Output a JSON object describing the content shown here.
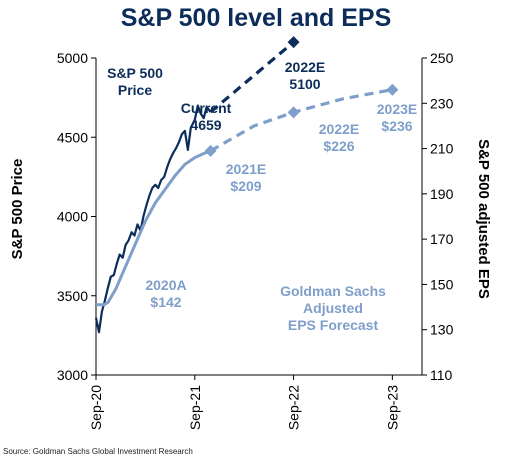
{
  "colors": {
    "title": "#0c2d5a",
    "price": "#0c2d5a",
    "eps": "#7f9fca",
    "axis": "#000000"
  },
  "chart_data": {
    "type": "line",
    "title": "S&P 500 level and EPS",
    "source": "Source: Goldman Sachs Global Investment Research",
    "ylabel_left": "S&P 500 Price",
    "ylabel_right": "S&P 500 adjusted EPS",
    "x_ticks": [
      "Sep-20",
      "Sep-21",
      "Sep-22",
      "Sep-23"
    ],
    "y_left": {
      "ticks": [
        "3000",
        "3500",
        "4000",
        "4500",
        "5000"
      ],
      "min": 3000,
      "max": 5000
    },
    "y_right": {
      "ticks": [
        "110",
        "130",
        "150",
        "170",
        "190",
        "210",
        "230",
        "250"
      ],
      "min": 110,
      "max": 250
    },
    "series": [
      {
        "name": "S&P 500 Price",
        "axis": "left",
        "points": [
          [
            0.0,
            3360
          ],
          [
            0.03,
            3270
          ],
          [
            0.06,
            3400
          ],
          [
            0.09,
            3470
          ],
          [
            0.12,
            3550
          ],
          [
            0.15,
            3620
          ],
          [
            0.18,
            3630
          ],
          [
            0.21,
            3700
          ],
          [
            0.24,
            3760
          ],
          [
            0.27,
            3740
          ],
          [
            0.3,
            3820
          ],
          [
            0.33,
            3850
          ],
          [
            0.36,
            3900
          ],
          [
            0.39,
            3880
          ],
          [
            0.42,
            3950
          ],
          [
            0.45,
            3910
          ],
          [
            0.48,
            4000
          ],
          [
            0.51,
            4070
          ],
          [
            0.54,
            4130
          ],
          [
            0.57,
            4180
          ],
          [
            0.6,
            4200
          ],
          [
            0.63,
            4180
          ],
          [
            0.66,
            4230
          ],
          [
            0.69,
            4250
          ],
          [
            0.72,
            4310
          ],
          [
            0.75,
            4360
          ],
          [
            0.78,
            4400
          ],
          [
            0.81,
            4430
          ],
          [
            0.84,
            4470
          ],
          [
            0.87,
            4520
          ],
          [
            0.9,
            4540
          ],
          [
            0.93,
            4420
          ],
          [
            0.96,
            4560
          ],
          [
            1.0,
            4610
          ],
          [
            1.03,
            4700
          ],
          [
            1.06,
            4650
          ],
          [
            1.09,
            4620
          ],
          [
            1.12,
            4690
          ],
          [
            1.16,
            4659
          ]
        ]
      },
      {
        "name": "S&P 500 adjusted EPS",
        "axis": "right",
        "points": [
          [
            0.0,
            141
          ],
          [
            0.08,
            141
          ],
          [
            0.12,
            142
          ],
          [
            0.2,
            148
          ],
          [
            0.3,
            158
          ],
          [
            0.4,
            168
          ],
          [
            0.5,
            178
          ],
          [
            0.6,
            186
          ],
          [
            0.7,
            192
          ],
          [
            0.8,
            198
          ],
          [
            0.9,
            203
          ],
          [
            1.0,
            206
          ],
          [
            1.1,
            208
          ],
          [
            1.16,
            209
          ]
        ]
      },
      {
        "name": "Goldman Sachs Adjusted EPS Forecast",
        "axis": "right",
        "points": [
          [
            1.16,
            209
          ],
          [
            1.6,
            220
          ],
          [
            2.0,
            226
          ],
          [
            2.5,
            232
          ],
          [
            3.0,
            236
          ]
        ]
      },
      {
        "name": "S&P 500 price forecast",
        "axis": "left",
        "points": [
          [
            1.16,
            4659
          ],
          [
            2.0,
            5100
          ]
        ]
      }
    ],
    "markers": [
      {
        "axis": "right",
        "x": 1.16,
        "y": 209
      },
      {
        "axis": "right",
        "x": 2.0,
        "y": 226
      },
      {
        "axis": "right",
        "x": 3.0,
        "y": 236
      },
      {
        "axis": "left",
        "x": 2.0,
        "y": 5100
      }
    ],
    "annotations": {
      "price_label": [
        "S&P 500",
        "Price"
      ],
      "current": [
        "Current",
        "4659"
      ],
      "e2022_price": [
        "2022E",
        "5100"
      ],
      "a2020": [
        "2020A",
        "$142"
      ],
      "e2021": [
        "2021E",
        "$209"
      ],
      "e2022_eps": [
        "2022E",
        "$226"
      ],
      "e2023_eps": [
        "2023E",
        "$236"
      ],
      "forecast_label": [
        "Goldman Sachs",
        "Adjusted",
        "EPS Forecast"
      ]
    },
    "x_unit_note": "x in years since Sep-20"
  }
}
